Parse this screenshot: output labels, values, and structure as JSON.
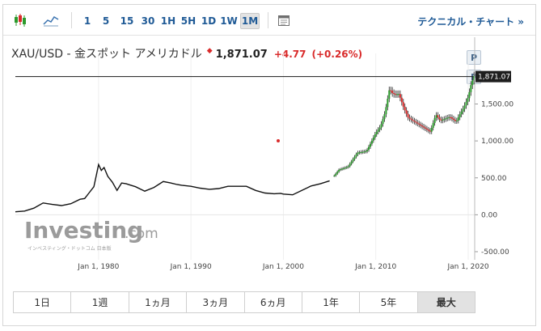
{
  "toolbar": {
    "candles_icon": "candlestick-chart-icon",
    "line_icon": "line-chart-icon",
    "timeframes": [
      "1",
      "5",
      "15",
      "30",
      "1H",
      "5H",
      "1D",
      "1W",
      "1M"
    ],
    "active_timeframe": "1M",
    "calendar_icon": "calendar-icon",
    "technical_link": "テクニカル・チャート »"
  },
  "header": {
    "instrument": "XAU/USD - 金スポット アメリカドル",
    "price": "1,871.07",
    "change": "+4.77",
    "change_pct": "(+0.26%)"
  },
  "markers": {
    "p_label": "P"
  },
  "watermark": {
    "brand": "Investing",
    "suffix": ".com",
    "subtitle": "インベスティング・ドットコム 日本版"
  },
  "colors": {
    "up": "#2c9a2c",
    "down": "#d92b2b",
    "line": "#111111",
    "accent": "#1f5a96"
  },
  "chart_data": {
    "type": "line",
    "x_tick_labels": [
      "Jan 1, 1980",
      "Jan 1, 1990",
      "Jan 1, 2000",
      "Jan 1, 2010",
      "Jan 1, 2020"
    ],
    "y_tick_labels": [
      "1,500.00",
      "1,000.00",
      "500.00",
      "0.00",
      "-500.00"
    ],
    "y_ticks": [
      1500,
      1000,
      500,
      0,
      -500
    ],
    "xlim": [
      1971.0,
      2020.7
    ],
    "ylim": [
      -500,
      1900
    ],
    "current_price": 1871.07,
    "current_price_label": "1,871.07",
    "x": [
      1971.0,
      1972.0,
      1973.0,
      1974.0,
      1975.0,
      1976.0,
      1977.0,
      1978.0,
      1978.5,
      1979.0,
      1979.5,
      1979.8,
      1980.0,
      1980.3,
      1980.6,
      1981.0,
      1981.5,
      1982.0,
      1982.5,
      1983.0,
      1983.5,
      1984.0,
      1985.0,
      1986.0,
      1987.0,
      1987.8,
      1988.5,
      1989.0,
      1990.0,
      1991.0,
      1992.0,
      1993.0,
      1994.0,
      1995.0,
      1996.0,
      1997.0,
      1998.0,
      1999.0,
      1999.7,
      2000.0,
      2001.0,
      2002.0,
      2003.0,
      2004.0,
      2005.0,
      2006.0,
      2007.0,
      2008.0,
      2009.0,
      2010.0,
      2010.5,
      2011.0,
      2011.5,
      2011.7,
      2012.0,
      2012.5,
      2013.0,
      2013.5,
      2014.0,
      2015.0,
      2015.9,
      2016.5,
      2017.0,
      2018.0,
      2018.7,
      2019.0,
      2019.5,
      2020.0,
      2020.3,
      2020.7
    ],
    "values": [
      40,
      50,
      90,
      160,
      140,
      125,
      150,
      210,
      220,
      300,
      380,
      560,
      680,
      600,
      640,
      520,
      440,
      330,
      430,
      420,
      400,
      380,
      320,
      370,
      450,
      430,
      410,
      400,
      385,
      360,
      345,
      355,
      385,
      385,
      385,
      330,
      295,
      285,
      290,
      280,
      270,
      330,
      390,
      420,
      460,
      630,
      680,
      880,
      900,
      1150,
      1230,
      1420,
      1750,
      1680,
      1650,
      1640,
      1450,
      1300,
      1250,
      1160,
      1080,
      1300,
      1220,
      1270,
      1210,
      1290,
      1400,
      1550,
      1720,
      1871
    ]
  },
  "range": {
    "buttons": [
      "1日",
      "1週",
      "1ヵ月",
      "3ヵ月",
      "6ヵ月",
      "1年",
      "5年",
      "最大"
    ],
    "active": "最大"
  }
}
